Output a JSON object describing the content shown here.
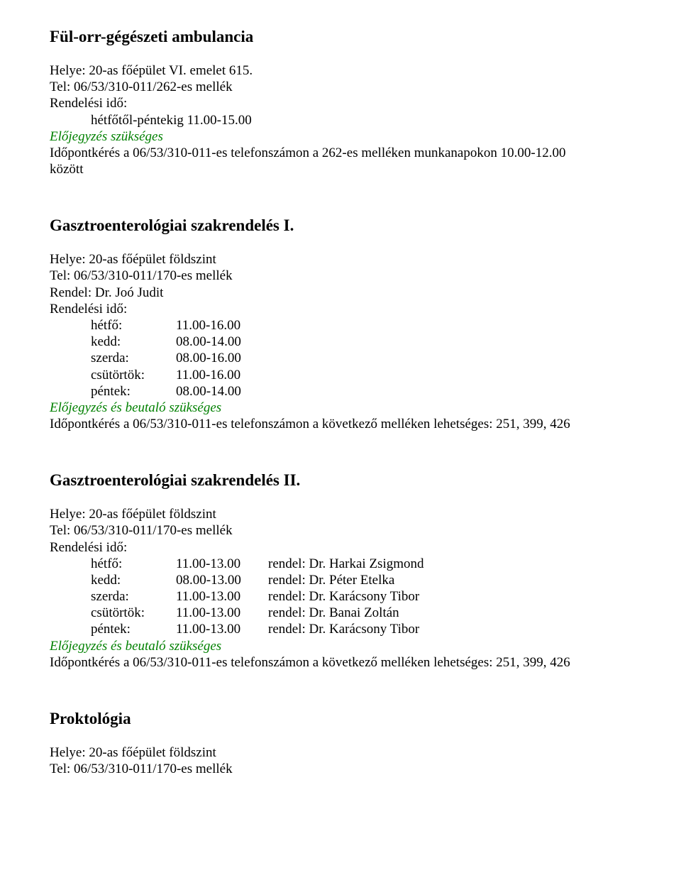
{
  "sec1": {
    "title": "Fül-orr-gégészeti ambulancia",
    "location": "Helye: 20-as főépület VI. emelet 615.",
    "tel": "Tel: 06/53/310-011/262-es mellék",
    "schedule_label": "Rendelési idő:",
    "hours": "hétfőtől-péntekig 11.00-15.00",
    "note_italic": "Előjegyzés szükséges",
    "appointment1": "Időpontkérés a 06/53/310-011-es telefonszámon a 262-es melléken munkanapokon 10.00-12.00",
    "appointment2": "között"
  },
  "sec2": {
    "title": "Gasztroenterológiai szakrendelés I.",
    "location": "Helye: 20-as főépület földszint",
    "tel": "Tel: 06/53/310-011/170-es mellék",
    "doctor": "Rendel: Dr. Joó Judit",
    "schedule_label": "Rendelési idő:",
    "rows": [
      {
        "day": "hétfő:",
        "time": "11.00-16.00"
      },
      {
        "day": "kedd:",
        "time": "08.00-14.00"
      },
      {
        "day": "szerda:",
        "time": "08.00-16.00"
      },
      {
        "day": "csütörtök:",
        "time": "11.00-16.00"
      },
      {
        "day": "péntek:",
        "time": "08.00-14.00"
      }
    ],
    "note_italic": "Előjegyzés és beutaló szükséges",
    "appointment": "Időpontkérés a 06/53/310-011-es telefonszámon a következő melléken lehetséges: 251, 399, 426"
  },
  "sec3": {
    "title": "Gasztroenterológiai szakrendelés II.",
    "location": "Helye: 20-as főépület földszint",
    "tel": "Tel: 06/53/310-011/170-es mellék",
    "schedule_label": "Rendelési idő:",
    "rows": [
      {
        "day": "hétfő:",
        "time": "11.00-13.00",
        "doc": "rendel: Dr. Harkai Zsigmond"
      },
      {
        "day": "kedd:",
        "time": "08.00-13.00",
        "doc": "rendel: Dr. Péter Etelka"
      },
      {
        "day": "szerda:",
        "time": "11.00-13.00",
        "doc": "rendel: Dr. Karácsony Tibor"
      },
      {
        "day": "csütörtök:",
        "time": "11.00-13.00",
        "doc": "rendel: Dr. Banai Zoltán"
      },
      {
        "day": "péntek:",
        "time": "11.00-13.00",
        "doc": "rendel: Dr. Karácsony Tibor"
      }
    ],
    "note_italic": "Előjegyzés és beutaló szükséges",
    "appointment": "Időpontkérés a 06/53/310-011-es telefonszámon a következő melléken lehetséges: 251, 399, 426"
  },
  "sec4": {
    "title": "Proktológia",
    "location": "Helye: 20-as főépület földszint",
    "tel": "Tel: 06/53/310-011/170-es mellék"
  }
}
